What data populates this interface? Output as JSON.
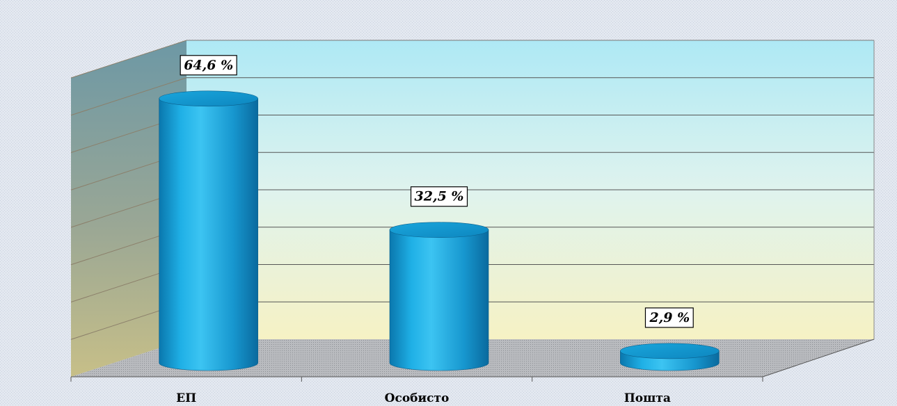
{
  "chart_data": {
    "type": "bar",
    "style": "3d-cylinder",
    "categories": [
      "ЕП",
      "Особисто",
      "Пошта"
    ],
    "values": [
      64.6,
      32.5,
      2.9
    ],
    "data_labels": [
      "64,6 %",
      "32,5 %",
      "2,9 %"
    ],
    "unit": "%",
    "title": "",
    "xlabel": "",
    "ylabel": "",
    "ylim": [
      0,
      70
    ],
    "grid": true,
    "legend": "none",
    "colors": {
      "bar": "#1aa3dc",
      "bar_dark": "#0a6fa5",
      "bar_light": "#7fd6f6",
      "back_wall_top": "#aee9f5",
      "back_wall_bottom": "#f3f1c6",
      "side_wall_top": "#6f9aa6",
      "side_wall_bottom": "#bfb98a",
      "floor": "#b5b7bb",
      "gridline": "#555555",
      "background": "#dfe5ee"
    }
  }
}
